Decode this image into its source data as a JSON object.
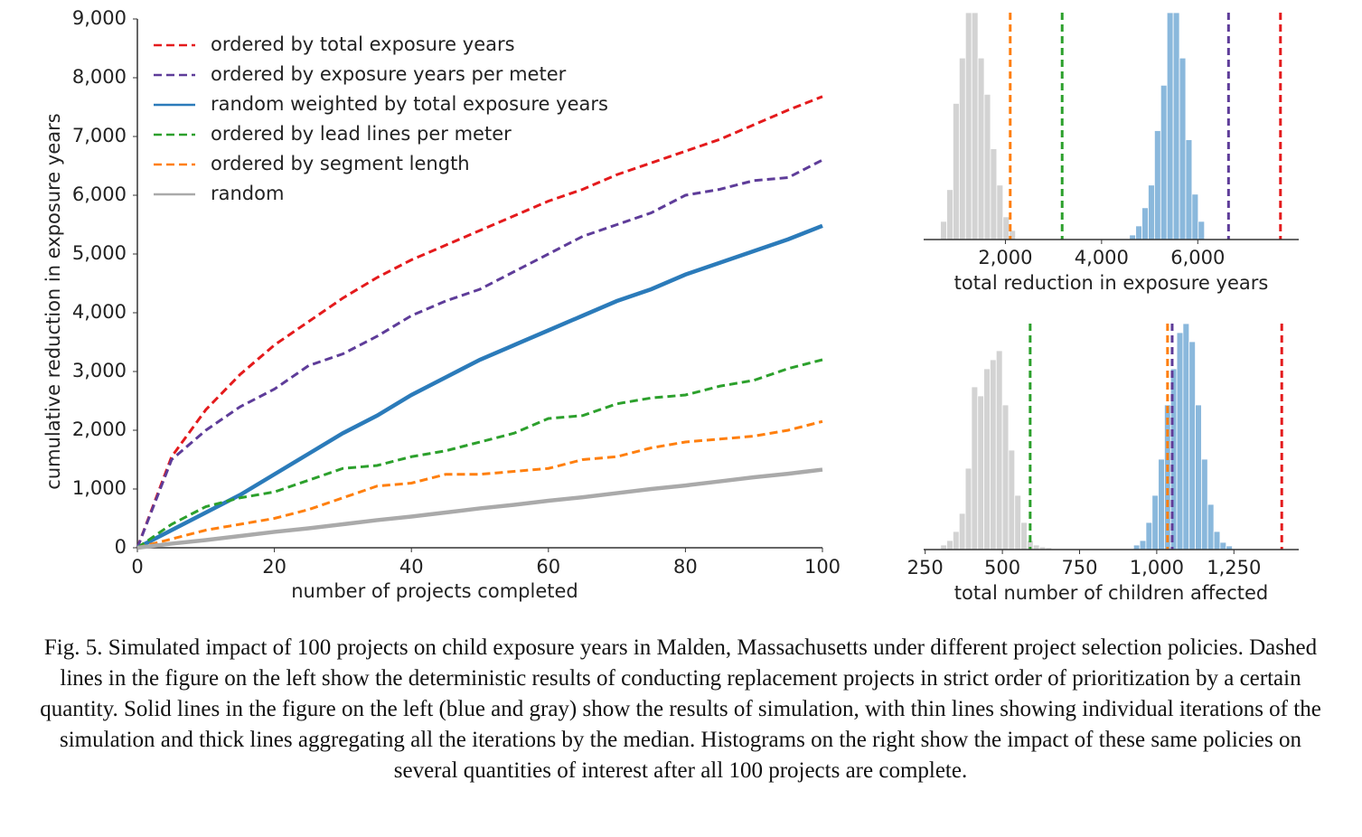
{
  "chart_data": [
    {
      "type": "line",
      "xlabel": "number of projects completed",
      "ylabel": "cumulative reduction in exposure years",
      "x": [
        0,
        5,
        10,
        15,
        20,
        25,
        30,
        35,
        40,
        45,
        50,
        55,
        60,
        65,
        70,
        75,
        80,
        85,
        90,
        95,
        100
      ],
      "xlim": [
        0,
        100
      ],
      "xticks": [
        0,
        20,
        40,
        60,
        80,
        100
      ],
      "ylim": [
        0,
        9000
      ],
      "yticks": [
        0,
        {
          "value": 1000,
          "label": "1,000"
        },
        {
          "value": 2000,
          "label": "2,000"
        },
        {
          "value": 3000,
          "label": "3,000"
        },
        {
          "value": 4000,
          "label": "4,000"
        },
        {
          "value": 5000,
          "label": "5,000"
        },
        {
          "value": 6000,
          "label": "6,000"
        },
        {
          "value": 7000,
          "label": "7,000"
        },
        {
          "value": 8000,
          "label": "8,000"
        },
        {
          "value": 9000,
          "label": "9,000"
        }
      ],
      "legend": "upper left",
      "series": [
        {
          "name": "ordered by total exposure years",
          "color": "#e41a1c",
          "style": "dashed",
          "values": [
            0,
            1550,
            2350,
            2950,
            3450,
            3850,
            4250,
            4600,
            4900,
            5150,
            5400,
            5650,
            5900,
            6100,
            6350,
            6550,
            6750,
            6950,
            7200,
            7450,
            7680
          ]
        },
        {
          "name": "ordered by exposure years per meter",
          "color": "#5e3c99",
          "style": "dashed",
          "values": [
            0,
            1500,
            2000,
            2400,
            2700,
            3100,
            3300,
            3600,
            3950,
            4200,
            4400,
            4700,
            5000,
            5300,
            5500,
            5700,
            6000,
            6100,
            6250,
            6300,
            6600
          ]
        },
        {
          "name": "random weighted by total exposure years",
          "color": "#2b7bba",
          "style": "solid",
          "values": [
            0,
            300,
            600,
            900,
            1250,
            1600,
            1950,
            2250,
            2600,
            2900,
            3200,
            3450,
            3700,
            3950,
            4200,
            4400,
            4650,
            4850,
            5050,
            5250,
            5480
          ]
        },
        {
          "name": "ordered by lead lines per meter",
          "color": "#2ca02c",
          "style": "dashed",
          "values": [
            0,
            400,
            700,
            850,
            950,
            1150,
            1350,
            1400,
            1550,
            1650,
            1800,
            1950,
            2200,
            2250,
            2450,
            2550,
            2600,
            2750,
            2850,
            3050,
            3200
          ]
        },
        {
          "name": "ordered by segment length",
          "color": "#ff7f0e",
          "style": "dashed",
          "values": [
            0,
            150,
            300,
            400,
            500,
            650,
            850,
            1050,
            1100,
            1250,
            1250,
            1300,
            1350,
            1500,
            1550,
            1700,
            1800,
            1850,
            1900,
            2000,
            2150
          ]
        },
        {
          "name": "random",
          "color": "#aaaaaa",
          "style": "solid",
          "values": [
            0,
            70,
            130,
            200,
            270,
            330,
            400,
            470,
            530,
            600,
            670,
            730,
            800,
            860,
            930,
            1000,
            1060,
            1130,
            1200,
            1260,
            1330
          ]
        }
      ]
    },
    {
      "type": "histogram",
      "xlabel": "total reduction in exposure years",
      "xlim": [
        300,
        8100
      ],
      "xticks": [
        {
          "value": 2000,
          "label": "2,000"
        },
        {
          "value": 4000,
          "label": "4,000"
        },
        {
          "value": 6000,
          "label": "6,000"
        }
      ],
      "series": [
        {
          "color": "#d3d3d3",
          "bins": [
            650,
            780,
            910,
            1040,
            1170,
            1300,
            1430,
            1560,
            1690,
            1820,
            1950,
            2080,
            2210
          ],
          "counts": [
            20,
            55,
            150,
            200,
            250,
            250,
            200,
            160,
            100,
            60,
            25,
            10
          ]
        },
        {
          "color": "#8ab8dc",
          "bins": [
            4580,
            4710,
            4840,
            4970,
            5100,
            5230,
            5360,
            5490,
            5620,
            5750,
            5880,
            6010,
            6140
          ],
          "counts": [
            5,
            15,
            35,
            60,
            120,
            170,
            250,
            250,
            200,
            110,
            50,
            20
          ]
        }
      ],
      "vlines": [
        {
          "value": 2100,
          "color": "#ff7f0e"
        },
        {
          "value": 3180,
          "color": "#2ca02c"
        },
        {
          "value": 6640,
          "color": "#5e3c99"
        },
        {
          "value": 7720,
          "color": "#e41a1c"
        }
      ]
    },
    {
      "type": "histogram",
      "xlabel": "total number of children affected",
      "xlim": [
        245,
        1460
      ],
      "xticks": [
        250,
        500,
        750,
        {
          "value": 1000,
          "label": "1,000"
        },
        {
          "value": 1250,
          "label": "1,250"
        }
      ],
      "series": [
        {
          "color": "#d3d3d3",
          "bins": [
            300,
            320,
            340,
            360,
            380,
            400,
            420,
            440,
            460,
            480,
            500,
            520,
            540,
            560,
            580,
            600,
            620,
            640,
            660
          ],
          "counts": [
            5,
            10,
            20,
            40,
            90,
            180,
            170,
            200,
            210,
            220,
            160,
            110,
            60,
            30,
            10,
            5,
            3,
            2
          ]
        },
        {
          "color": "#8ab8dc",
          "bins": [
            925,
            945,
            965,
            985,
            1005,
            1025,
            1045,
            1065,
            1085,
            1105,
            1125,
            1145,
            1165,
            1185,
            1205,
            1225,
            1245
          ],
          "counts": [
            5,
            10,
            30,
            60,
            100,
            160,
            200,
            240,
            250,
            230,
            160,
            100,
            50,
            20,
            8,
            4
          ]
        }
      ],
      "vlines": [
        {
          "value": 590,
          "color": "#2ca02c"
        },
        {
          "value": 1035,
          "color": "#ff7f0e"
        },
        {
          "value": 1050,
          "color": "#5e3c99"
        },
        {
          "value": 1405,
          "color": "#e41a1c"
        }
      ]
    }
  ],
  "caption": "Fig. 5.  Simulated impact of 100 projects on child exposure years in Malden, Massachusetts under different project selection policies. Dashed lines in the figure on the left show the deterministic results of conducting replacement projects in strict order of prioritization by a certain quantity. Solid lines in the figure on the left (blue and gray) show the results of simulation, with thin lines showing individual iterations of the simulation and thick lines aggregating all the iterations by the median. Histograms on the right show the impact of these same policies on several quantities of interest after all 100 projects are complete."
}
